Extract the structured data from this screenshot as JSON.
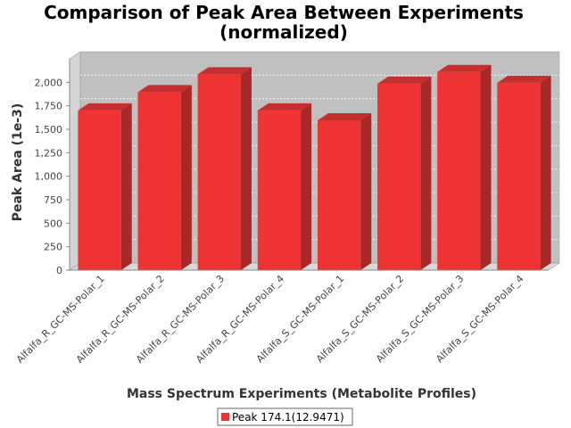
{
  "chart_data": {
    "type": "bar",
    "title_line1": "Comparison of Peak Area Between Experiments",
    "title_line2": "(normalized)",
    "xlabel": "Mass Spectrum Experiments (Metabolite Profiles)",
    "ylabel": "Peak Area (1e-3)",
    "ylim": [
      0,
      2250
    ],
    "yticks": [
      0,
      250,
      500,
      750,
      1000,
      1250,
      1500,
      1750,
      2000
    ],
    "ytick_labels": [
      "0",
      "250",
      "500",
      "750",
      "1,000",
      "1,250",
      "1,500",
      "1,750",
      "2,000"
    ],
    "categories": [
      "Alfalfa_R_GC-MS-Polar_1",
      "Alfalfa_R_GC-MS-Polar_2",
      "Alfalfa_R_GC-MS-Polar_3",
      "Alfalfa_R_GC-MS-Polar_4",
      "Alfalfa_S_GC-MS-Polar_1",
      "Alfalfa_S_GC-MS-Polar_2",
      "Alfalfa_S_GC-MS-Polar_3",
      "Alfalfa_S_GC-MS-Polar_4"
    ],
    "series": [
      {
        "name": "Peak 174.1(12.9471)",
        "values": [
          1700,
          1895,
          2085,
          1700,
          1595,
          1985,
          2110,
          1995
        ],
        "color": "#ee3333"
      }
    ],
    "grid": true,
    "legend_position": "bottom",
    "plot_background": "#c0c0c0"
  }
}
